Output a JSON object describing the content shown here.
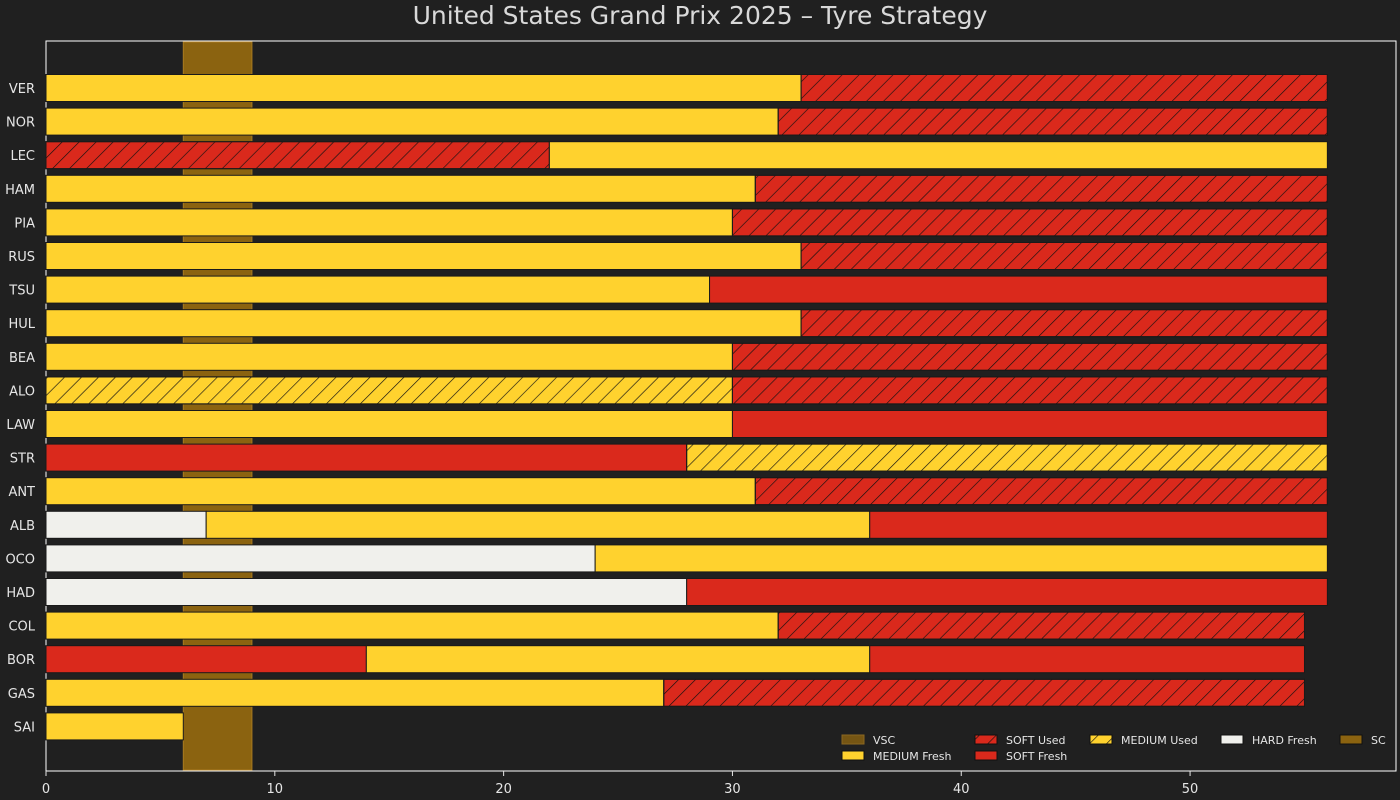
{
  "title": "United States Grand Prix 2025  –  Tyre Strategy",
  "colors": {
    "background": "#202020",
    "MEDIUM": "#ffd22e",
    "SOFT": "#da291c",
    "HARD": "#f0f0ec",
    "sc_band": "#8b6310",
    "edge": "#1a1a1a"
  },
  "chart_data": {
    "type": "bar",
    "orientation": "horizontal",
    "title": "United States Grand Prix 2025  –  Tyre Strategy",
    "xlabel": "",
    "ylabel": "",
    "xlim": [
      0,
      59
    ],
    "xticks": [
      0,
      10,
      20,
      30,
      40,
      50
    ],
    "grid": false,
    "legend_position": "lower-right",
    "legend": [
      {
        "label": "VSC",
        "kind": "VSC"
      },
      {
        "label": "MEDIUM Fresh",
        "kind": "MEDIUM",
        "used": false
      },
      {
        "label": "SOFT Used",
        "kind": "SOFT",
        "used": true
      },
      {
        "label": "SOFT Fresh",
        "kind": "SOFT",
        "used": false
      },
      {
        "label": "MEDIUM Used",
        "kind": "MEDIUM",
        "used": true
      },
      {
        "label": "HARD Fresh",
        "kind": "HARD",
        "used": false
      },
      {
        "label": "SC",
        "kind": "SC"
      }
    ],
    "safety_car": {
      "start": 6,
      "end": 9
    },
    "drivers": [
      {
        "name": "VER",
        "stints": [
          {
            "compound": "MEDIUM",
            "used": false,
            "start": 0,
            "end": 33
          },
          {
            "compound": "SOFT",
            "used": true,
            "start": 33,
            "end": 56
          }
        ]
      },
      {
        "name": "NOR",
        "stints": [
          {
            "compound": "MEDIUM",
            "used": false,
            "start": 0,
            "end": 32
          },
          {
            "compound": "SOFT",
            "used": true,
            "start": 32,
            "end": 56
          }
        ]
      },
      {
        "name": "LEC",
        "stints": [
          {
            "compound": "SOFT",
            "used": true,
            "start": 0,
            "end": 22
          },
          {
            "compound": "MEDIUM",
            "used": false,
            "start": 22,
            "end": 56
          }
        ]
      },
      {
        "name": "HAM",
        "stints": [
          {
            "compound": "MEDIUM",
            "used": false,
            "start": 0,
            "end": 31
          },
          {
            "compound": "SOFT",
            "used": true,
            "start": 31,
            "end": 56
          }
        ]
      },
      {
        "name": "PIA",
        "stints": [
          {
            "compound": "MEDIUM",
            "used": false,
            "start": 0,
            "end": 30
          },
          {
            "compound": "SOFT",
            "used": true,
            "start": 30,
            "end": 56
          }
        ]
      },
      {
        "name": "RUS",
        "stints": [
          {
            "compound": "MEDIUM",
            "used": false,
            "start": 0,
            "end": 33
          },
          {
            "compound": "SOFT",
            "used": true,
            "start": 33,
            "end": 56
          }
        ]
      },
      {
        "name": "TSU",
        "stints": [
          {
            "compound": "MEDIUM",
            "used": false,
            "start": 0,
            "end": 29
          },
          {
            "compound": "SOFT",
            "used": false,
            "start": 29,
            "end": 56
          }
        ]
      },
      {
        "name": "HUL",
        "stints": [
          {
            "compound": "MEDIUM",
            "used": false,
            "start": 0,
            "end": 33
          },
          {
            "compound": "SOFT",
            "used": true,
            "start": 33,
            "end": 56
          }
        ]
      },
      {
        "name": "BEA",
        "stints": [
          {
            "compound": "MEDIUM",
            "used": false,
            "start": 0,
            "end": 30
          },
          {
            "compound": "SOFT",
            "used": true,
            "start": 30,
            "end": 56
          }
        ]
      },
      {
        "name": "ALO",
        "stints": [
          {
            "compound": "MEDIUM",
            "used": true,
            "start": 0,
            "end": 30
          },
          {
            "compound": "SOFT",
            "used": true,
            "start": 30,
            "end": 56
          }
        ]
      },
      {
        "name": "LAW",
        "stints": [
          {
            "compound": "MEDIUM",
            "used": false,
            "start": 0,
            "end": 30
          },
          {
            "compound": "SOFT",
            "used": false,
            "start": 30,
            "end": 56
          }
        ]
      },
      {
        "name": "STR",
        "stints": [
          {
            "compound": "SOFT",
            "used": false,
            "start": 0,
            "end": 28
          },
          {
            "compound": "MEDIUM",
            "used": true,
            "start": 28,
            "end": 56
          }
        ]
      },
      {
        "name": "ANT",
        "stints": [
          {
            "compound": "MEDIUM",
            "used": false,
            "start": 0,
            "end": 31
          },
          {
            "compound": "SOFT",
            "used": true,
            "start": 31,
            "end": 56
          }
        ]
      },
      {
        "name": "ALB",
        "stints": [
          {
            "compound": "HARD",
            "used": false,
            "start": 0,
            "end": 7
          },
          {
            "compound": "MEDIUM",
            "used": false,
            "start": 7,
            "end": 36
          },
          {
            "compound": "SOFT",
            "used": false,
            "start": 36,
            "end": 56
          }
        ]
      },
      {
        "name": "OCO",
        "stints": [
          {
            "compound": "HARD",
            "used": false,
            "start": 0,
            "end": 24
          },
          {
            "compound": "MEDIUM",
            "used": false,
            "start": 24,
            "end": 56
          }
        ]
      },
      {
        "name": "HAD",
        "stints": [
          {
            "compound": "HARD",
            "used": false,
            "start": 0,
            "end": 28
          },
          {
            "compound": "SOFT",
            "used": false,
            "start": 28,
            "end": 56
          }
        ]
      },
      {
        "name": "COL",
        "stints": [
          {
            "compound": "MEDIUM",
            "used": false,
            "start": 0,
            "end": 32
          },
          {
            "compound": "SOFT",
            "used": true,
            "start": 32,
            "end": 55
          }
        ]
      },
      {
        "name": "BOR",
        "stints": [
          {
            "compound": "SOFT",
            "used": false,
            "start": 0,
            "end": 14
          },
          {
            "compound": "MEDIUM",
            "used": false,
            "start": 14,
            "end": 36
          },
          {
            "compound": "SOFT",
            "used": false,
            "start": 36,
            "end": 55
          }
        ]
      },
      {
        "name": "GAS",
        "stints": [
          {
            "compound": "MEDIUM",
            "used": false,
            "start": 0,
            "end": 27
          },
          {
            "compound": "SOFT",
            "used": true,
            "start": 27,
            "end": 55
          }
        ]
      },
      {
        "name": "SAI",
        "stints": [
          {
            "compound": "MEDIUM",
            "used": false,
            "start": 0,
            "end": 6
          }
        ]
      }
    ]
  }
}
